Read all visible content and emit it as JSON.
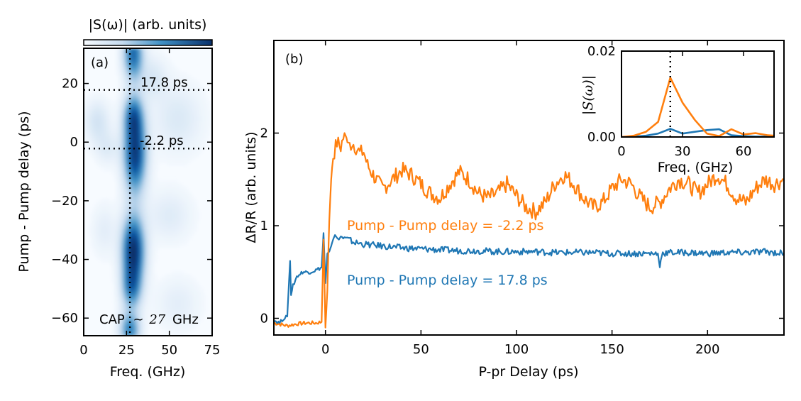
{
  "colors": {
    "orange": "#ff7f0e",
    "blue": "#1f77b4",
    "colormap_low": "#f7fbff",
    "colormap_high": "#08306b"
  },
  "chart_data": [
    {
      "id": "a",
      "type": "heatmap",
      "panel_label": "(a)",
      "colorbar_label": "|S(ω)| (arb. units)",
      "xlabel": "Freq. (GHz)",
      "ylabel": "Pump - Pump delay (ps)",
      "xlim": [
        0,
        75
      ],
      "ylim": [
        -66,
        32
      ],
      "xticks": [
        0,
        25,
        50,
        75
      ],
      "yticks": [
        20,
        0,
        -20,
        -40,
        -60
      ],
      "vline_x": 27,
      "hlines": [
        {
          "y": 17.8,
          "label": "17.8 ps"
        },
        {
          "y": -2.2,
          "label": "-2.2 ps"
        }
      ],
      "annotation": "CAP ~27 GHz",
      "annotation_parts": {
        "text": "CAP",
        "approx": "~",
        "value": "27",
        "unit": "GHz"
      },
      "blobs": [
        {
          "f": 29,
          "d": 30,
          "sf": 4,
          "sd": 6,
          "a": 0.7
        },
        {
          "f": 29,
          "d": 9,
          "sf": 4,
          "sd": 5,
          "a": 0.55
        },
        {
          "f": 30,
          "d": -4,
          "sf": 4.5,
          "sd": 9,
          "a": 0.92
        },
        {
          "f": 29,
          "d": -37,
          "sf": 4.5,
          "sd": 8,
          "a": 1.0
        },
        {
          "f": 28,
          "d": -50,
          "sf": 4,
          "sd": 5,
          "a": 0.5
        },
        {
          "f": 27,
          "d": -64,
          "sf": 4,
          "sd": 4,
          "a": 0.6
        },
        {
          "f": 8,
          "d": 7,
          "sf": 5,
          "sd": 5,
          "a": 0.18
        },
        {
          "f": 14,
          "d": -2,
          "sf": 5,
          "sd": 4,
          "a": 0.12
        },
        {
          "f": 55,
          "d": 8,
          "sf": 10,
          "sd": 8,
          "a": 0.14
        },
        {
          "f": 50,
          "d": -25,
          "sf": 9,
          "sd": 6,
          "a": 0.12
        },
        {
          "f": 55,
          "d": -55,
          "sf": 9,
          "sd": 6,
          "a": 0.1
        },
        {
          "f": 12,
          "d": -30,
          "sf": 5,
          "sd": 6,
          "a": 0.1
        },
        {
          "f": 40,
          "d": 22,
          "sf": 6,
          "sd": 5,
          "a": 0.15
        }
      ]
    },
    {
      "id": "b",
      "type": "line",
      "panel_label": "(b)",
      "xlabel": "P-pr Delay (ps)",
      "ylabel": "ΔR/R (arb. units)",
      "xlim": [
        -27,
        240
      ],
      "ylim": [
        -0.18,
        3.0
      ],
      "xticks": [
        0,
        50,
        100,
        150,
        200
      ],
      "yticks": [
        0,
        1,
        2
      ],
      "series": [
        {
          "name": "Pump - Pump delay = -2.2 ps",
          "color": "orange",
          "x": [
            -27,
            -20,
            -15,
            -10,
            -5,
            -2,
            -1,
            0,
            1,
            2,
            3,
            4,
            6,
            8,
            10,
            11,
            12,
            14,
            16,
            18,
            20,
            22,
            25,
            28,
            30,
            35,
            40,
            45,
            50,
            55,
            60,
            65,
            70,
            75,
            80,
            85,
            90,
            95,
            100,
            105,
            110,
            115,
            120,
            125,
            130,
            135,
            140,
            145,
            150,
            155,
            160,
            165,
            170,
            175,
            180,
            185,
            190,
            195,
            200,
            205,
            210,
            215,
            220,
            225,
            230,
            235,
            240
          ],
          "y": [
            -0.05,
            -0.08,
            -0.06,
            -0.05,
            -0.05,
            -0.04,
            0.85,
            -0.1,
            0.3,
            1.05,
            1.5,
            1.75,
            1.9,
            1.85,
            2.0,
            1.95,
            1.85,
            1.9,
            1.85,
            1.78,
            1.8,
            1.65,
            1.55,
            1.45,
            1.4,
            1.5,
            1.6,
            1.55,
            1.45,
            1.35,
            1.3,
            1.45,
            1.58,
            1.5,
            1.35,
            1.3,
            1.35,
            1.45,
            1.32,
            1.2,
            1.15,
            1.25,
            1.45,
            1.55,
            1.45,
            1.3,
            1.2,
            1.25,
            1.4,
            1.5,
            1.45,
            1.3,
            1.2,
            1.25,
            1.4,
            1.5,
            1.45,
            1.35,
            1.45,
            1.55,
            1.45,
            1.3,
            1.25,
            1.4,
            1.5,
            1.45,
            1.5
          ]
        },
        {
          "name": "Pump - Pump delay = 17.8 ps",
          "color": "blue",
          "x": [
            -27,
            -24,
            -22,
            -20,
            -18.5,
            -18,
            -17,
            -15,
            -12,
            -8,
            -5,
            -2,
            -1,
            0,
            1,
            2,
            3,
            4,
            5,
            6,
            7,
            8,
            10,
            12,
            15,
            20,
            25,
            30,
            40,
            50,
            60,
            70,
            80,
            90,
            100,
            110,
            120,
            130,
            140,
            150,
            160,
            170,
            174,
            175,
            176,
            180,
            190,
            200,
            210,
            220,
            230,
            240
          ],
          "y": [
            -0.02,
            -0.05,
            0.0,
            0.02,
            0.62,
            0.25,
            0.35,
            0.45,
            0.5,
            0.5,
            0.52,
            0.55,
            0.92,
            0.38,
            0.7,
            0.72,
            0.78,
            0.85,
            0.9,
            0.87,
            0.85,
            0.88,
            0.86,
            0.85,
            0.82,
            0.8,
            0.79,
            0.78,
            0.76,
            0.75,
            0.74,
            0.73,
            0.73,
            0.72,
            0.72,
            0.72,
            0.71,
            0.71,
            0.71,
            0.7,
            0.7,
            0.7,
            0.7,
            0.55,
            0.7,
            0.71,
            0.71,
            0.7,
            0.71,
            0.71,
            0.72,
            0.7
          ]
        }
      ],
      "legend_labels": [
        {
          "text": "Pump - Pump delay = -2.2 ps",
          "color": "orange"
        },
        {
          "text": "Pump - Pump delay = 17.8 ps",
          "color": "blue"
        }
      ]
    },
    {
      "id": "inset",
      "type": "line",
      "xlabel": "Freq. (GHz)",
      "ylabel": "|S(ω)|",
      "xlim": [
        0,
        75
      ],
      "ylim": [
        0,
        0.02
      ],
      "xticks": [
        0,
        30,
        60
      ],
      "yticks": [
        0.0,
        0.02
      ],
      "ytick_labels": [
        "0.00",
        "0.02"
      ],
      "vline_x": 24,
      "series": [
        {
          "name": "orange spectrum",
          "color": "orange",
          "x": [
            0,
            6,
            12,
            18,
            24,
            30,
            36,
            42,
            48,
            54,
            60,
            66,
            72,
            75
          ],
          "y": [
            0.0,
            0.0003,
            0.0012,
            0.0035,
            0.0138,
            0.008,
            0.004,
            0.0008,
            0.0002,
            0.0018,
            0.0006,
            0.0009,
            0.0004,
            0.0003
          ]
        },
        {
          "name": "blue spectrum",
          "color": "blue",
          "x": [
            0,
            6,
            12,
            18,
            24,
            30,
            36,
            42,
            48,
            54,
            60,
            66,
            72,
            75
          ],
          "y": [
            0.0,
            0.0001,
            0.0003,
            0.0008,
            0.0019,
            0.0008,
            0.0012,
            0.0016,
            0.0018,
            0.0004,
            0.0002,
            0.0001,
            0.0001,
            0.0001
          ]
        }
      ]
    }
  ]
}
